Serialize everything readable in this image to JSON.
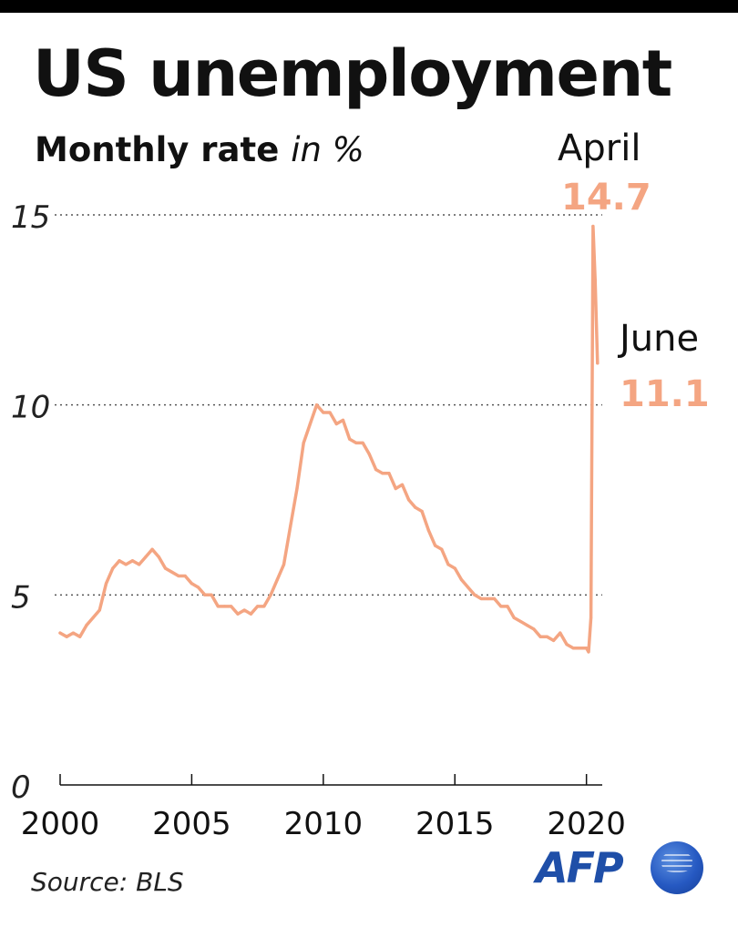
{
  "title": "US unemployment",
  "subtitle_main": "Monthly rate",
  "subtitle_unit": "in %",
  "source": "Source: BLS",
  "logo": "AFP",
  "colors": {
    "line": "#f4a582",
    "annotation": "#f4a582",
    "text": "#111111",
    "grid": "#555555"
  },
  "chart_data": {
    "type": "line",
    "title": "US unemployment",
    "subtitle": "Monthly rate in %",
    "xlabel": "",
    "ylabel": "",
    "xlim": [
      2000,
      2020.6
    ],
    "ylim": [
      0,
      15
    ],
    "x_ticks": [
      2000,
      2005,
      2010,
      2015,
      2020
    ],
    "y_ticks": [
      0,
      5,
      10,
      15
    ],
    "grid": "horizontal dotted at 5, 10, 15",
    "annotations": [
      {
        "month": "April",
        "value": "14.7"
      },
      {
        "month": "June",
        "value": "11.1"
      }
    ],
    "series": [
      {
        "x": [
          2000.0,
          2000.25,
          2000.5,
          2000.75,
          2001.0,
          2001.25,
          2001.5,
          2001.75,
          2002.0,
          2002.25,
          2002.5,
          2002.75,
          2003.0,
          2003.25,
          2003.5,
          2003.75,
          2004.0,
          2004.25,
          2004.5,
          2004.75,
          2005.0,
          2005.25,
          2005.5,
          2005.75,
          2006.0,
          2006.25,
          2006.5,
          2006.75,
          2007.0,
          2007.25,
          2007.5,
          2007.75,
          2008.0,
          2008.25,
          2008.5,
          2008.75,
          2009.0,
          2009.25,
          2009.5,
          2009.75,
          2010.0,
          2010.25,
          2010.5,
          2010.75,
          2011.0,
          2011.25,
          2011.5,
          2011.75,
          2012.0,
          2012.25,
          2012.5,
          2012.75,
          2013.0,
          2013.25,
          2013.5,
          2013.75,
          2014.0,
          2014.25,
          2014.5,
          2014.75,
          2015.0,
          2015.25,
          2015.5,
          2015.75,
          2016.0,
          2016.25,
          2016.5,
          2016.75,
          2017.0,
          2017.25,
          2017.5,
          2017.75,
          2018.0,
          2018.25,
          2018.5,
          2018.75,
          2019.0,
          2019.25,
          2019.5,
          2019.75,
          2020.0,
          2020.08,
          2020.17,
          2020.25,
          2020.33,
          2020.42
        ],
        "values": [
          4.0,
          3.9,
          4.0,
          3.9,
          4.2,
          4.4,
          4.6,
          5.3,
          5.7,
          5.9,
          5.8,
          5.9,
          5.8,
          6.0,
          6.2,
          6.0,
          5.7,
          5.6,
          5.5,
          5.5,
          5.3,
          5.2,
          5.0,
          5.0,
          4.7,
          4.7,
          4.7,
          4.5,
          4.6,
          4.5,
          4.7,
          4.7,
          5.0,
          5.4,
          5.8,
          6.8,
          7.8,
          9.0,
          9.5,
          10.0,
          9.8,
          9.8,
          9.5,
          9.6,
          9.1,
          9.0,
          9.0,
          8.7,
          8.3,
          8.2,
          8.2,
          7.8,
          7.9,
          7.5,
          7.3,
          7.2,
          6.7,
          6.3,
          6.2,
          5.8,
          5.7,
          5.4,
          5.2,
          5.0,
          4.9,
          4.9,
          4.9,
          4.7,
          4.7,
          4.4,
          4.3,
          4.2,
          4.1,
          3.9,
          3.9,
          3.8,
          4.0,
          3.7,
          3.6,
          3.6,
          3.6,
          3.5,
          4.4,
          14.7,
          13.3,
          11.1
        ]
      }
    ]
  }
}
